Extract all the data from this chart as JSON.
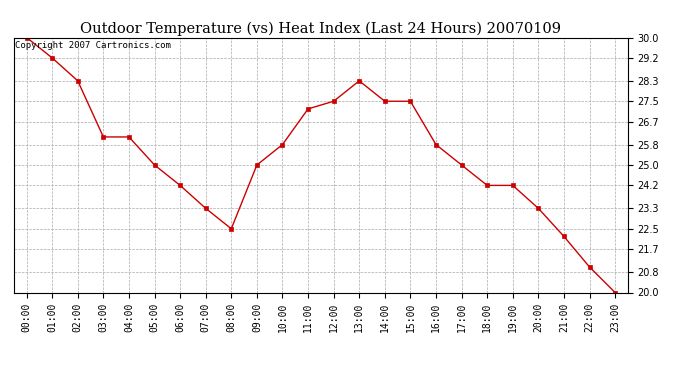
{
  "title": "Outdoor Temperature (vs) Heat Index (Last 24 Hours) 20070109",
  "copyright_text": "Copyright 2007 Cartronics.com",
  "x_labels": [
    "00:00",
    "01:00",
    "02:00",
    "03:00",
    "04:00",
    "05:00",
    "06:00",
    "07:00",
    "08:00",
    "09:00",
    "10:00",
    "11:00",
    "12:00",
    "13:00",
    "14:00",
    "15:00",
    "16:00",
    "17:00",
    "18:00",
    "19:00",
    "20:00",
    "21:00",
    "22:00",
    "23:00"
  ],
  "y_values": [
    30.0,
    29.2,
    28.3,
    26.1,
    26.1,
    25.0,
    24.2,
    23.3,
    22.5,
    25.0,
    25.8,
    27.2,
    27.5,
    28.3,
    27.5,
    27.5,
    25.8,
    25.0,
    24.2,
    24.2,
    23.3,
    22.2,
    21.0,
    20.0
  ],
  "line_color": "#cc0000",
  "marker": "s",
  "marker_size": 2.5,
  "ylim": [
    20.0,
    30.0
  ],
  "yticks": [
    20.0,
    20.8,
    21.7,
    22.5,
    23.3,
    24.2,
    25.0,
    25.8,
    26.7,
    27.5,
    28.3,
    29.2,
    30.0
  ],
  "background_color": "#ffffff",
  "plot_bg_color": "#ffffff",
  "grid_color": "#aaaaaa",
  "title_fontsize": 10.5,
  "tick_fontsize": 7,
  "copyright_fontsize": 6.5
}
